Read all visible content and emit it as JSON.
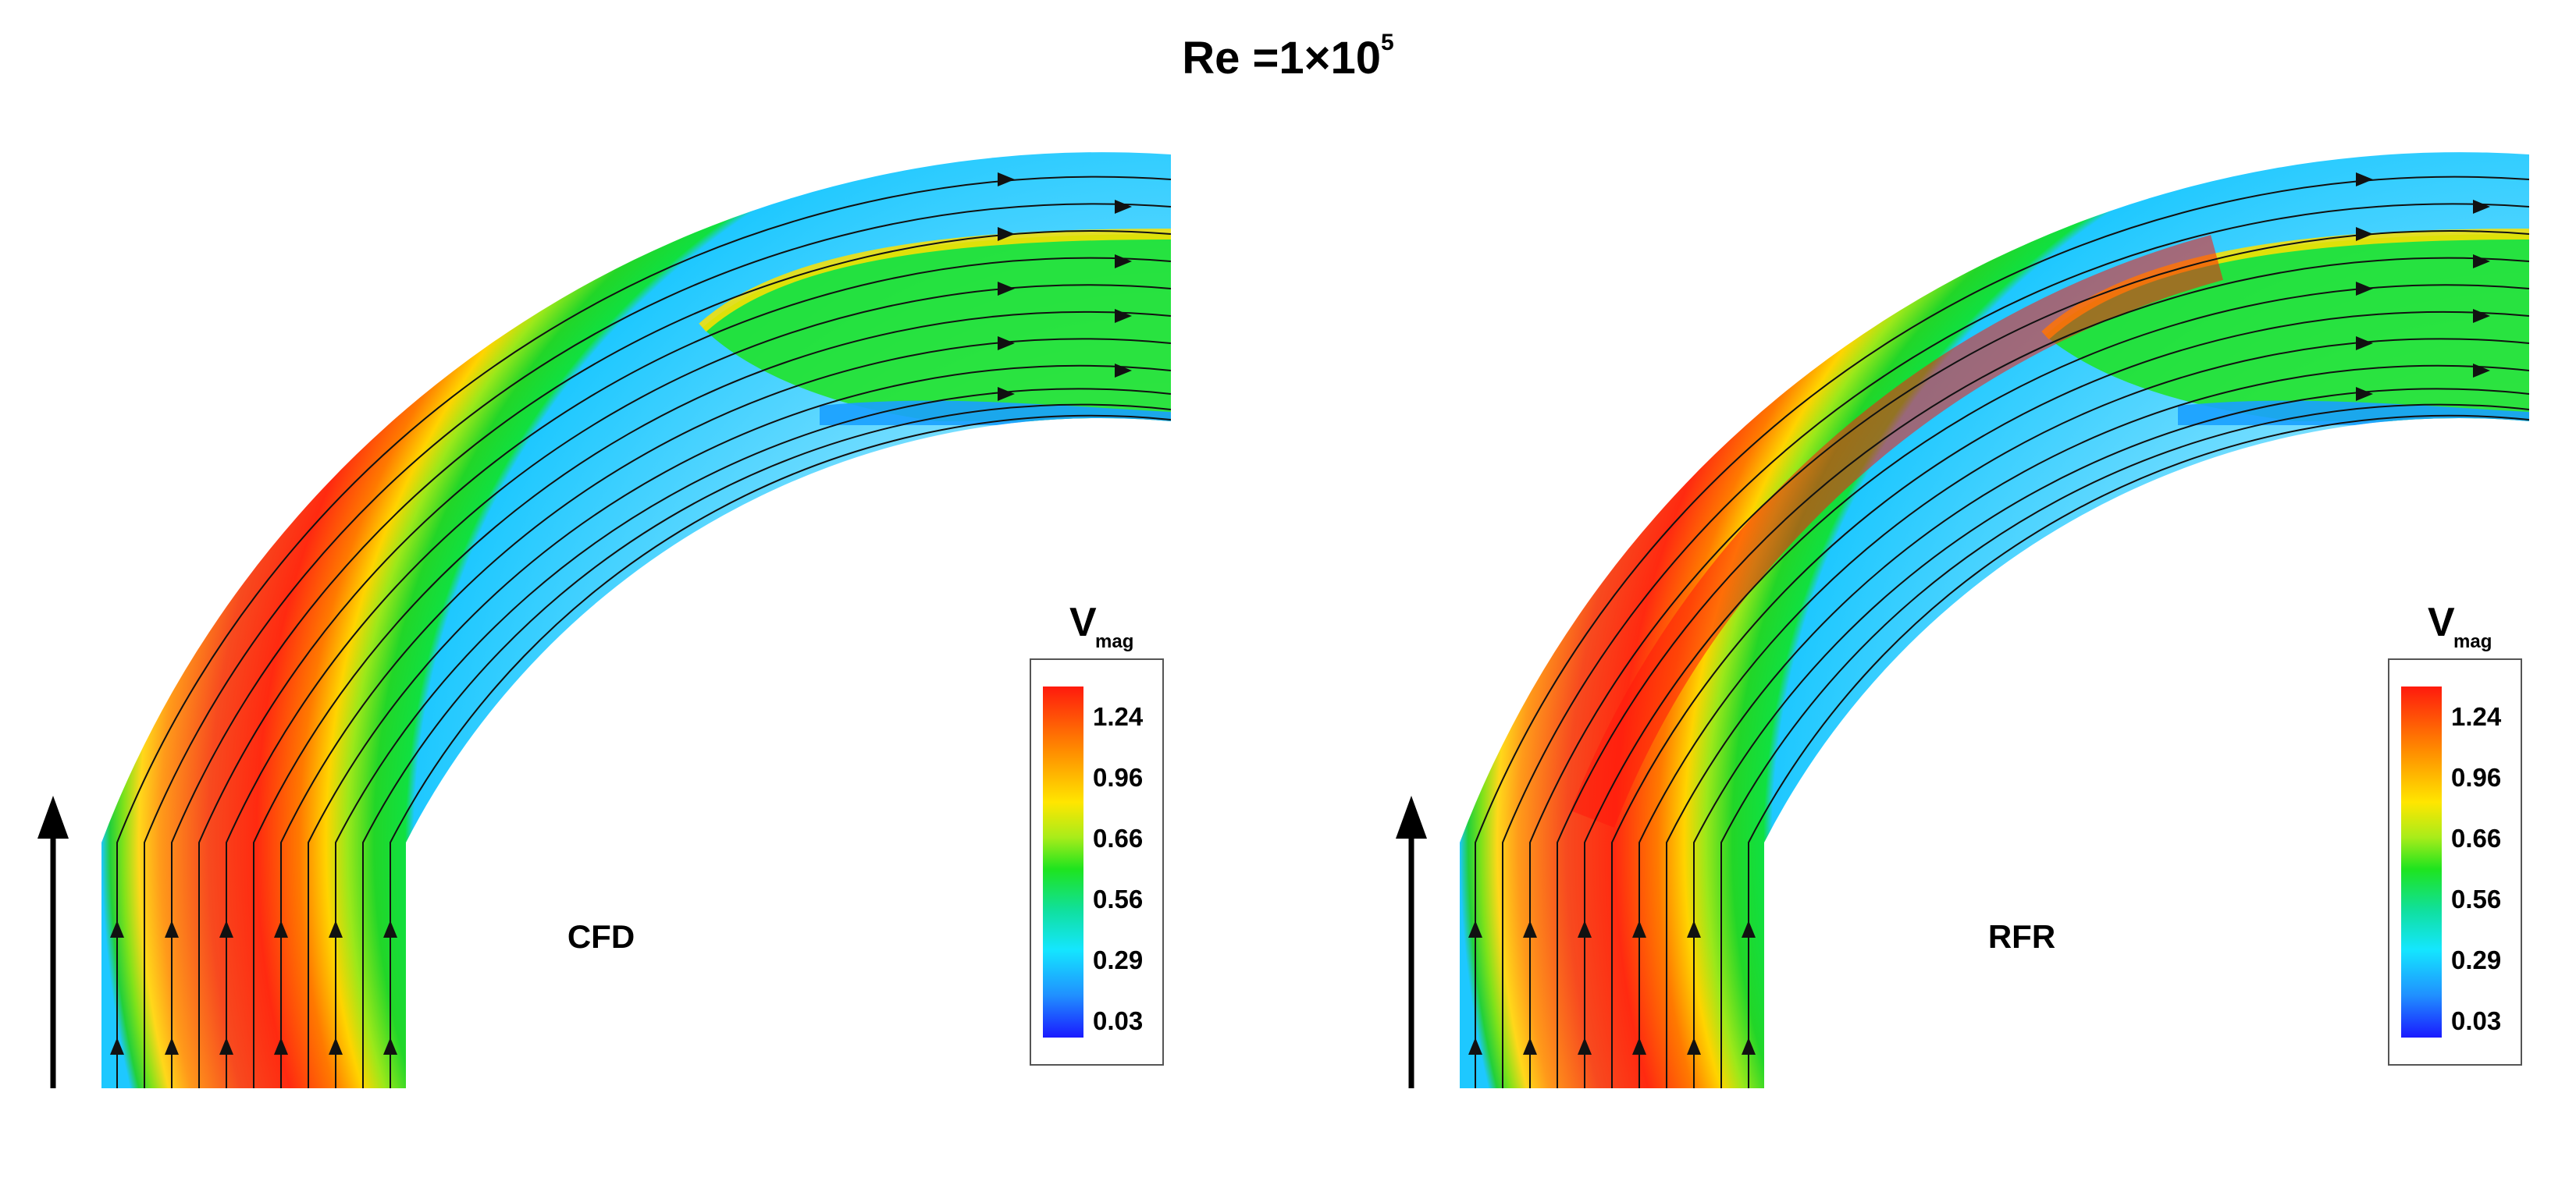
{
  "figure": {
    "title_prefix": "Re =1×10",
    "title_exponent": "5"
  },
  "colorbar": {
    "label_main": "V",
    "label_sub": "mag",
    "ticks": [
      "1.24",
      "0.96",
      "0.66",
      "0.56",
      "0.29",
      "0.03"
    ],
    "colors": [
      "#ff1a0d",
      "#ff8a00",
      "#ffe600",
      "#a8ec1a",
      "#1ee41e",
      "#10e0a0",
      "#14e6ff",
      "#2090ff",
      "#1a1aff"
    ]
  },
  "panels": [
    {
      "label": "CFD",
      "flow_direction": "up"
    },
    {
      "label": "RFR",
      "flow_direction": "up"
    }
  ],
  "colors": {
    "core": "#f7401f",
    "peak": "#ff1a0d",
    "inner_wall": "#18d63a",
    "wall": "#1ec8ff"
  }
}
